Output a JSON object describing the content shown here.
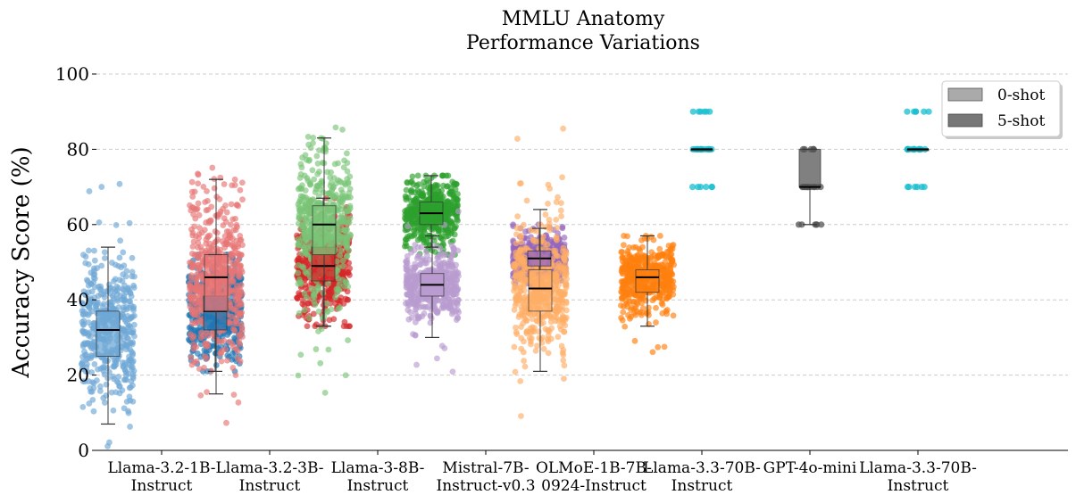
{
  "chart_data": {
    "type": "scatter",
    "title_line1": "MMLU Anatomy",
    "title_line2": "Performance Variations",
    "ylabel": "Accuracy Score (%)",
    "ylim": [
      0,
      100
    ],
    "yticks": [
      "0",
      "20",
      "40",
      "60",
      "80",
      "100"
    ],
    "grid": "horizontal dashed",
    "legend_position": "top-right",
    "legend": [
      {
        "label": "0-shot",
        "color": "#aaaaaa"
      },
      {
        "label": "5-shot",
        "color": "#777777"
      }
    ],
    "categories": [
      {
        "line1": "Llama-3.2-1B-",
        "line2": "Instruct"
      },
      {
        "line1": "Llama-3.2-3B-",
        "line2": "Instruct"
      },
      {
        "line1": "Llama-3-8B-",
        "line2": "Instruct"
      },
      {
        "line1": "Mistral-7B-",
        "line2": "Instruct-v0.3"
      },
      {
        "line1": "OLMoE-1B-7B-",
        "line2": "0924-Instruct"
      },
      {
        "line1": "Llama-3.3-70B-",
        "line2": "Instruct"
      },
      {
        "line1": "GPT-4o-mini",
        "line2": ""
      },
      {
        "line1": "Llama-3.3-70B-",
        "line2": "Instruct"
      }
    ],
    "groups": [
      {
        "category": 0,
        "shot": "0-shot",
        "color": "#6fa8d6",
        "box": {
          "whislo": 7,
          "q1": 25,
          "median": 32,
          "q3": 37,
          "whishi": 54
        },
        "min": 0,
        "max": 73,
        "spread": "wide"
      },
      {
        "category": 0,
        "shot": "5-shot",
        "color": "#1f77b4",
        "box": {
          "whislo": 21,
          "q1": 32,
          "median": 37,
          "q3": 41,
          "whishi": 52
        },
        "min": 21,
        "max": 52,
        "spread": "wide"
      },
      {
        "category": 1,
        "shot": "0-shot",
        "color": "#e87474",
        "box": {
          "whislo": 15,
          "q1": 37,
          "median": 46,
          "q3": 52,
          "whishi": 72
        },
        "min": 7,
        "max": 76,
        "spread": "wide"
      },
      {
        "category": 1,
        "shot": "5-shot",
        "color": "#d62728",
        "box": {
          "whislo": 33,
          "q1": 45,
          "median": 49,
          "q3": 54,
          "whishi": 67
        },
        "min": 33,
        "max": 67,
        "spread": "wide"
      },
      {
        "category": 2,
        "shot": "0-shot",
        "color": "#79c477",
        "box": {
          "whislo": 33,
          "q1": 52,
          "median": 60,
          "q3": 65,
          "whishi": 83
        },
        "min": 11,
        "max": 87,
        "spread": "wide"
      },
      {
        "category": 2,
        "shot": "5-shot",
        "color": "#2ca02c",
        "box": {
          "whislo": 54,
          "q1": 60,
          "median": 63,
          "q3": 66,
          "whishi": 73
        },
        "min": 52,
        "max": 73,
        "spread": "wide"
      },
      {
        "category": 3,
        "shot": "0-shot",
        "color": "#b99bd0",
        "box": {
          "whislo": 30,
          "q1": 41,
          "median": 44,
          "q3": 47,
          "whishi": 57
        },
        "min": 20,
        "max": 66,
        "spread": "wide"
      },
      {
        "category": 3,
        "shot": "5-shot",
        "color": "#9467bd",
        "box": {
          "whislo": 43,
          "q1": 49,
          "median": 51,
          "q3": 53,
          "whishi": 59
        },
        "min": 43,
        "max": 60,
        "spread": "wide"
      },
      {
        "category": 4,
        "shot": "0-shot",
        "color": "#ffad66",
        "box": {
          "whislo": 21,
          "q1": 37,
          "median": 43,
          "q3": 48,
          "whishi": 64
        },
        "min": 9,
        "max": 94,
        "spread": "wide"
      },
      {
        "category": 4,
        "shot": "5-shot",
        "color": "#ff7f0e",
        "box": {
          "whislo": 33,
          "q1": 42,
          "median": 46,
          "q3": 48,
          "whishi": 57
        },
        "min": 25,
        "max": 57,
        "spread": "wide"
      },
      {
        "category": 5,
        "shot": "0-shot",
        "color": "#17becf",
        "box": {
          "whislo": 80,
          "q1": 80,
          "median": 80,
          "q3": 80,
          "whishi": 80
        },
        "discrete": [
          70,
          80,
          90
        ],
        "spread": "narrow"
      },
      {
        "category": 6,
        "shot": "0-shot",
        "color": "#555555",
        "box": {
          "whislo": 60,
          "q1": 70,
          "median": 70,
          "q3": 80,
          "whishi": 80
        },
        "discrete": [
          60,
          70,
          80
        ],
        "spread": "narrow"
      },
      {
        "category": 7,
        "shot": "0-shot",
        "color": "#17becf",
        "box": {
          "whislo": 80,
          "q1": 80,
          "median": 80,
          "q3": 80,
          "whishi": 80
        },
        "discrete": [
          70,
          80,
          90
        ],
        "spread": "narrow"
      }
    ]
  }
}
